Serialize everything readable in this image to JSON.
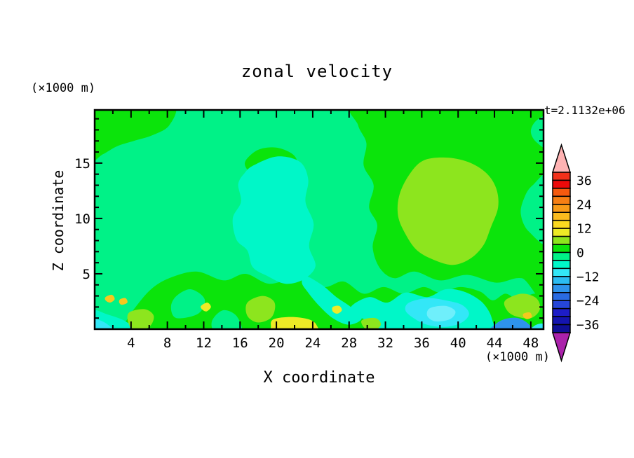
{
  "chart_data": {
    "type": "heatmap",
    "title": "zonal velocity",
    "time": "t=2.1132e+06",
    "xlabel": "X coordinate",
    "ylabel": "Z coordinate",
    "units_x": "(×1000 m)",
    "units_z": "(×1000 m)",
    "x_range": [
      0,
      49.4
    ],
    "z_range": [
      0,
      19.8
    ],
    "x_major_ticks": [
      4,
      8,
      12,
      16,
      20,
      24,
      28,
      32,
      36,
      40,
      44,
      48
    ],
    "x_minor_step": 2,
    "z_major_ticks": [
      5,
      10,
      15
    ],
    "z_minor_step": 1,
    "levels": {
      "min": -40,
      "max": 40,
      "step": 4
    },
    "colorbar": {
      "labels": [
        "36",
        "24",
        "12",
        "0",
        "−12",
        "−24",
        "−36"
      ],
      "cells": [
        "#F2301A",
        "#EC0A0A",
        "#F55A0F",
        "#F67F14",
        "#F89B18",
        "#FABB1E",
        "#FBD920",
        "#EDEB26",
        "#8DE51E",
        "#0BE40B",
        "#00F287",
        "#00F7C8",
        "#33E7F7",
        "#2BBCF2",
        "#2E93EC",
        "#2A6BE2",
        "#2646D8",
        "#1D1DC8",
        "#1414AF",
        "#0F0F96"
      ],
      "over_color": "#FFB3B3",
      "under_color": "#AB22AB"
    },
    "bands": {
      "spring": "#00F287",
      "green": "#0BE40B",
      "aqua": "#00F7C8",
      "cyan": "#33E7F7",
      "ltcyan": "#6FEFFB",
      "chartreuse": "#8DE51E",
      "yellow": "#EDEB26",
      "gold": "#F6C81E",
      "skyblue": "#2E93EC"
    },
    "background_band": "spring",
    "regions": [
      {
        "band": "green",
        "name": "top-left",
        "points": [
          [
            -0.5,
            20.5
          ],
          [
            4,
            20.3
          ],
          [
            8.7,
            20.2
          ],
          [
            8.2,
            18.4
          ],
          [
            6.3,
            17.5
          ],
          [
            4.3,
            17.0
          ],
          [
            2.4,
            16.5
          ],
          [
            0.9,
            15.8
          ],
          [
            -0.6,
            15.4
          ]
        ]
      },
      {
        "band": "green",
        "name": "top-right",
        "points": [
          [
            28.8,
            20.4
          ],
          [
            40,
            20.5
          ],
          [
            50.2,
            20.3
          ],
          [
            50.1,
            3.4
          ],
          [
            47,
            4.6
          ],
          [
            44.2,
            4.2
          ],
          [
            41,
            4.9
          ],
          [
            38,
            4.4
          ],
          [
            35.2,
            5.2
          ],
          [
            33,
            4.6
          ],
          [
            31.4,
            5.5
          ],
          [
            30.6,
            7.4
          ],
          [
            31.1,
            9.4
          ],
          [
            30.2,
            11
          ],
          [
            30.7,
            13
          ],
          [
            29.6,
            14.8
          ],
          [
            29.9,
            16.8
          ],
          [
            29.0,
            18.4
          ]
        ]
      },
      {
        "band": "green",
        "name": "bottom-band",
        "points": [
          [
            2.8,
            -0.5
          ],
          [
            10,
            -0.4
          ],
          [
            20,
            -0.5
          ],
          [
            30,
            -0.4
          ],
          [
            38,
            -0.5
          ],
          [
            44,
            -0.4
          ],
          [
            50,
            -0.4
          ],
          [
            50,
            2.9
          ],
          [
            48.4,
            3.2
          ],
          [
            46.6,
            2.7
          ],
          [
            45.2,
            3.2
          ],
          [
            43.8,
            2.6
          ],
          [
            42.4,
            3.4
          ],
          [
            40.2,
            3.8
          ],
          [
            38.0,
            3.3
          ],
          [
            36.2,
            3.8
          ],
          [
            34.0,
            3.2
          ],
          [
            31.8,
            3.8
          ],
          [
            29.6,
            3.2
          ],
          [
            27.4,
            4.3
          ],
          [
            25.2,
            3.8
          ],
          [
            22.2,
            4.6
          ],
          [
            19.2,
            4.1
          ],
          [
            16.6,
            5.0
          ],
          [
            14.2,
            4.4
          ],
          [
            11.2,
            5.2
          ],
          [
            8.2,
            4.6
          ],
          [
            6.2,
            3.6
          ],
          [
            4.6,
            2.1
          ],
          [
            3.6,
            0.9
          ]
        ]
      },
      {
        "band": "green",
        "name": "upper-center-blob",
        "points": [
          [
            16.6,
            15.2
          ],
          [
            18.0,
            16.2
          ],
          [
            20.0,
            16.4
          ],
          [
            21.8,
            15.8
          ],
          [
            22.3,
            14.9
          ],
          [
            21.5,
            14.0
          ],
          [
            19.5,
            13.6
          ],
          [
            17.8,
            13.8
          ],
          [
            16.8,
            14.4
          ]
        ]
      },
      {
        "band": "spring",
        "name": "right-edge-patch",
        "points": [
          [
            50.2,
            7.8
          ],
          [
            47.8,
            8.8
          ],
          [
            46.9,
            10.4
          ],
          [
            47.3,
            11.9
          ],
          [
            48.2,
            13.0
          ],
          [
            50.2,
            13.9
          ]
        ]
      },
      {
        "band": "spring",
        "name": "top-right-corner-patch",
        "points": [
          [
            50.2,
            16.3
          ],
          [
            48.6,
            16.9
          ],
          [
            48.0,
            17.9
          ],
          [
            48.7,
            18.9
          ],
          [
            50.2,
            19.2
          ]
        ]
      },
      {
        "band": "spring",
        "name": "band-hole-a",
        "points": [
          [
            9.0,
            1.0
          ],
          [
            11.4,
            1.4
          ],
          [
            12.1,
            2.7
          ],
          [
            10.6,
            3.6
          ],
          [
            9.0,
            3.0
          ],
          [
            8.4,
            2.0
          ]
        ]
      },
      {
        "band": "spring",
        "name": "band-hole-b",
        "points": [
          [
            13.4,
            -0.3
          ],
          [
            16.1,
            -0.3
          ],
          [
            15.6,
            1.2
          ],
          [
            14.1,
            1.7
          ],
          [
            12.9,
            0.7
          ]
        ]
      },
      {
        "band": "aqua",
        "name": "bottom-left-streak",
        "points": [
          [
            -0.5,
            1.7
          ],
          [
            1.5,
            1.3
          ],
          [
            3.4,
            0.7
          ],
          [
            4.6,
            -0.3
          ],
          [
            -0.5,
            -0.3
          ]
        ]
      },
      {
        "band": "cyan",
        "name": "bottom-left-tip",
        "points": [
          [
            -0.4,
            0.9
          ],
          [
            1.1,
            0.6
          ],
          [
            2.1,
            -0.3
          ],
          [
            -0.4,
            -0.3
          ]
        ]
      },
      {
        "band": "aqua",
        "name": "central-blob",
        "points": [
          [
            17.5,
            14.8
          ],
          [
            20.1,
            15.6
          ],
          [
            22.6,
            15.1
          ],
          [
            23.5,
            13.5
          ],
          [
            23.2,
            11.5
          ],
          [
            24.1,
            9.5
          ],
          [
            23.6,
            7.5
          ],
          [
            24.3,
            5.7
          ],
          [
            23.0,
            4.5
          ],
          [
            21.0,
            4.1
          ],
          [
            19.0,
            4.8
          ],
          [
            17.4,
            5.6
          ],
          [
            16.8,
            7.1
          ],
          [
            15.6,
            8.1
          ],
          [
            15.2,
            10.0
          ],
          [
            16.1,
            11.5
          ],
          [
            15.8,
            13.1
          ],
          [
            16.5,
            14.1
          ]
        ]
      },
      {
        "band": "aqua",
        "name": "channel",
        "points": [
          [
            23.2,
            4.8
          ],
          [
            25.0,
            4.0
          ],
          [
            26.6,
            2.9
          ],
          [
            28.2,
            2.0
          ],
          [
            29.4,
            1.0
          ],
          [
            28.0,
            0.4
          ],
          [
            26.2,
            1.0
          ],
          [
            24.6,
            2.2
          ],
          [
            23.4,
            3.4
          ],
          [
            22.8,
            4.2
          ]
        ]
      },
      {
        "band": "aqua",
        "name": "bottom-right-region",
        "points": [
          [
            28.2,
            2.0
          ],
          [
            30.2,
            2.9
          ],
          [
            32.2,
            2.4
          ],
          [
            34.2,
            3.3
          ],
          [
            36.6,
            2.9
          ],
          [
            38.6,
            3.6
          ],
          [
            40.6,
            3.4
          ],
          [
            42.4,
            2.6
          ],
          [
            43.4,
            1.6
          ],
          [
            43.9,
            0.5
          ],
          [
            44.4,
            -0.4
          ],
          [
            33.0,
            -0.4
          ],
          [
            30.4,
            0.6
          ],
          [
            29.0,
            1.2
          ]
        ]
      },
      {
        "band": "cyan",
        "name": "bottom-right-cyan",
        "points": [
          [
            34.6,
            2.4
          ],
          [
            36.6,
            2.8
          ],
          [
            38.6,
            2.6
          ],
          [
            40.4,
            2.2
          ],
          [
            41.2,
            1.4
          ],
          [
            40.4,
            0.6
          ],
          [
            38.6,
            0.2
          ],
          [
            36.6,
            0.4
          ],
          [
            35.1,
            1.0
          ],
          [
            34.2,
            1.7
          ]
        ]
      },
      {
        "band": "ltcyan",
        "name": "bottom-right-core",
        "points": [
          [
            36.9,
            1.9
          ],
          [
            38.6,
            2.1
          ],
          [
            39.7,
            1.6
          ],
          [
            39.1,
            0.9
          ],
          [
            37.5,
            0.7
          ],
          [
            36.6,
            1.2
          ]
        ]
      },
      {
        "band": "chartreuse",
        "name": "right-blob",
        "points": [
          [
            33.5,
            12.0
          ],
          [
            34.5,
            13.8
          ],
          [
            36.1,
            15.2
          ],
          [
            38.6,
            15.5
          ],
          [
            41.1,
            15.1
          ],
          [
            43.1,
            14.1
          ],
          [
            44.2,
            12.7
          ],
          [
            44.4,
            11.0
          ],
          [
            43.6,
            9.2
          ],
          [
            42.8,
            7.6
          ],
          [
            41.4,
            6.4
          ],
          [
            39.5,
            5.8
          ],
          [
            37.5,
            6.2
          ],
          [
            35.5,
            7.1
          ],
          [
            34.2,
            8.6
          ],
          [
            33.4,
            10.2
          ]
        ]
      },
      {
        "band": "chartreuse",
        "name": "bottom-center",
        "points": [
          [
            16.8,
            2.4
          ],
          [
            18.5,
            3.0
          ],
          [
            19.8,
            2.4
          ],
          [
            19.5,
            1.1
          ],
          [
            18.0,
            0.6
          ],
          [
            16.8,
            1.2
          ]
        ]
      },
      {
        "band": "chartreuse",
        "name": "bottom-left",
        "points": [
          [
            3.8,
            1.5
          ],
          [
            5.5,
            1.8
          ],
          [
            6.5,
            1.2
          ],
          [
            6.0,
            0.2
          ],
          [
            4.4,
            -0.2
          ],
          [
            3.7,
            0.6
          ]
        ]
      },
      {
        "band": "chartreuse",
        "name": "bottom-right",
        "points": [
          [
            45.2,
            2.6
          ],
          [
            47.0,
            3.2
          ],
          [
            48.6,
            2.8
          ],
          [
            49.0,
            1.8
          ],
          [
            48.0,
            1.0
          ],
          [
            46.2,
            1.2
          ],
          [
            45.3,
            1.8
          ]
        ]
      },
      {
        "band": "chartreuse",
        "name": "bottom-small",
        "points": [
          [
            29.4,
            0.8
          ],
          [
            30.9,
            1.0
          ],
          [
            31.5,
            0.4
          ],
          [
            30.6,
            -0.2
          ],
          [
            29.7,
            0.1
          ]
        ]
      },
      {
        "band": "yellow",
        "name": "bottom-center-yellow",
        "points": [
          [
            19.7,
            0.9
          ],
          [
            21.6,
            1.1
          ],
          [
            23.5,
            0.9
          ],
          [
            24.4,
            0.4
          ],
          [
            24.2,
            -0.3
          ],
          [
            19.9,
            -0.3
          ],
          [
            19.4,
            0.3
          ]
        ]
      },
      {
        "band": "yellow",
        "name": "dot-a",
        "points": [
          [
            11.7,
            2.1
          ],
          [
            12.4,
            2.4
          ],
          [
            12.8,
            2.0
          ],
          [
            12.3,
            1.6
          ],
          [
            11.8,
            1.8
          ]
        ]
      },
      {
        "band": "yellow",
        "name": "dot-b",
        "points": [
          [
            26.2,
            2.0
          ],
          [
            26.9,
            2.1
          ],
          [
            27.2,
            1.7
          ],
          [
            26.7,
            1.4
          ],
          [
            26.2,
            1.6
          ]
        ]
      },
      {
        "band": "gold",
        "name": "dot-c",
        "points": [
          [
            1.2,
            2.9
          ],
          [
            1.9,
            3.1
          ],
          [
            2.2,
            2.7
          ],
          [
            1.7,
            2.4
          ],
          [
            1.2,
            2.6
          ]
        ]
      },
      {
        "band": "gold",
        "name": "dot-d",
        "points": [
          [
            2.8,
            2.7
          ],
          [
            3.4,
            2.8
          ],
          [
            3.6,
            2.4
          ],
          [
            3.0,
            2.2
          ],
          [
            2.7,
            2.4
          ]
        ]
      },
      {
        "band": "gold",
        "name": "dot-e",
        "points": [
          [
            47.2,
            1.4
          ],
          [
            47.9,
            1.5
          ],
          [
            48.1,
            1.1
          ],
          [
            47.6,
            0.9
          ],
          [
            47.2,
            1.1
          ]
        ]
      },
      {
        "band": "skyblue",
        "name": "corner-blue",
        "points": [
          [
            43.6,
            -0.3
          ],
          [
            44.2,
            0.5
          ],
          [
            45.3,
            0.95
          ],
          [
            46.6,
            1.0
          ],
          [
            47.7,
            0.5
          ],
          [
            48.2,
            -0.3
          ]
        ]
      },
      {
        "band": "cyan",
        "name": "corner-cyan",
        "points": [
          [
            48.0,
            -0.3
          ],
          [
            48.4,
            0.3
          ],
          [
            49.3,
            0.5
          ],
          [
            50.0,
            0.2
          ],
          [
            50.0,
            -0.3
          ]
        ]
      }
    ]
  }
}
